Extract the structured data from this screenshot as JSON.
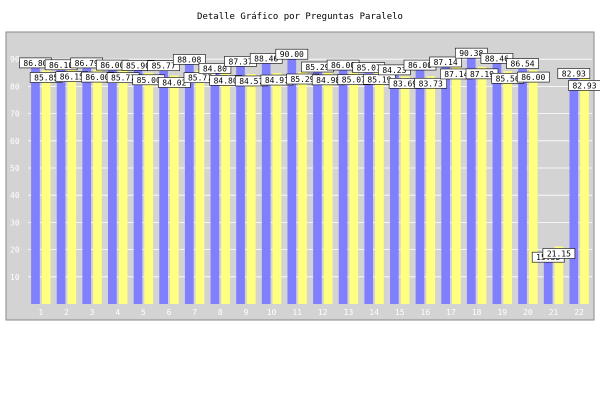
{
  "chart_data": {
    "type": "bar",
    "title": "Detalle Gráfico por Preguntas Paralelo",
    "xlabel": "",
    "ylabel": "",
    "ylim": [
      0,
      100
    ],
    "yticks": [
      10,
      20,
      30,
      40,
      50,
      60,
      70,
      80,
      90
    ],
    "grid": true,
    "legend": "none",
    "categories": [
      "1",
      "2",
      "3",
      "4",
      "5",
      "6",
      "7",
      "8",
      "9",
      "10",
      "11",
      "12",
      "13",
      "14",
      "15",
      "16",
      "17",
      "18",
      "19",
      "20",
      "21",
      "22"
    ],
    "series": [
      {
        "values": [
          86.8,
          86.1,
          86.79,
          86.0,
          85.9,
          85.77,
          88.08,
          84.8,
          87.37,
          88.46,
          90.0,
          85.29,
          86.0,
          85.07,
          84.23,
          86.0,
          87.14,
          90.38,
          88.46,
          86.54,
          15.38,
          82.93
        ]
      },
      {
        "values": [
          85.85,
          86.15,
          86.0,
          85.77,
          85.0,
          84.02,
          85.77,
          84.8,
          84.57,
          84.91,
          85.29,
          84.98,
          85.07,
          85.19,
          83.69,
          83.73,
          87.14,
          87.19,
          85.56,
          86.0,
          21.15,
          82.93
        ]
      }
    ],
    "colors": {
      "series1": "#8080ff",
      "series2": "#ffff80",
      "plot_bg": "#d3d3d3"
    }
  }
}
